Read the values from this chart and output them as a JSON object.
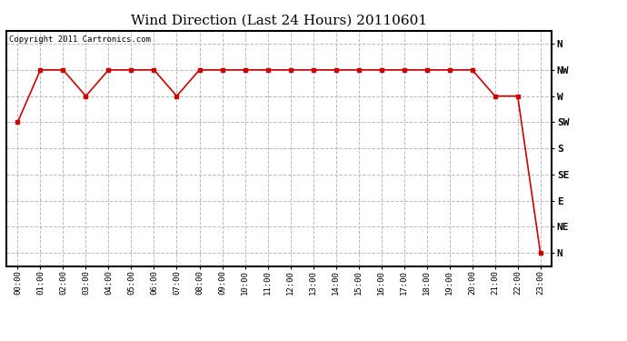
{
  "title": "Wind Direction (Last 24 Hours) 20110601",
  "copyright_text": "Copyright 2011 Cartronics.com",
  "background_color": "#ffffff",
  "line_color": "#cc0000",
  "marker": "s",
  "marker_size": 3,
  "grid_color": "#bbbbbb",
  "grid_style": "--",
  "ytick_labels": [
    "N",
    "NW",
    "W",
    "SW",
    "S",
    "SE",
    "E",
    "NE",
    "N"
  ],
  "ytick_values": [
    8,
    7,
    6,
    5,
    4,
    3,
    2,
    1,
    0
  ],
  "xtick_labels": [
    "00:00",
    "01:00",
    "02:00",
    "03:00",
    "04:00",
    "05:00",
    "06:00",
    "07:00",
    "08:00",
    "09:00",
    "10:00",
    "11:00",
    "12:00",
    "13:00",
    "14:00",
    "15:00",
    "16:00",
    "17:00",
    "18:00",
    "19:00",
    "20:00",
    "21:00",
    "22:00",
    "23:00"
  ],
  "hours": [
    0,
    1,
    2,
    3,
    4,
    5,
    6,
    7,
    8,
    9,
    10,
    11,
    12,
    13,
    14,
    15,
    16,
    17,
    18,
    19,
    20,
    21,
    22,
    23
  ],
  "wind_values": [
    5,
    7,
    7,
    6,
    7,
    7,
    7,
    6,
    7,
    7,
    7,
    7,
    7,
    7,
    7,
    7,
    7,
    7,
    7,
    7,
    7,
    6,
    6,
    0
  ],
  "ylim": [
    -0.5,
    8.5
  ],
  "xlim": [
    -0.5,
    23.5
  ],
  "title_fontsize": 11,
  "copyright_fontsize": 6.5,
  "xtick_fontsize": 6.5,
  "ytick_fontsize": 8
}
